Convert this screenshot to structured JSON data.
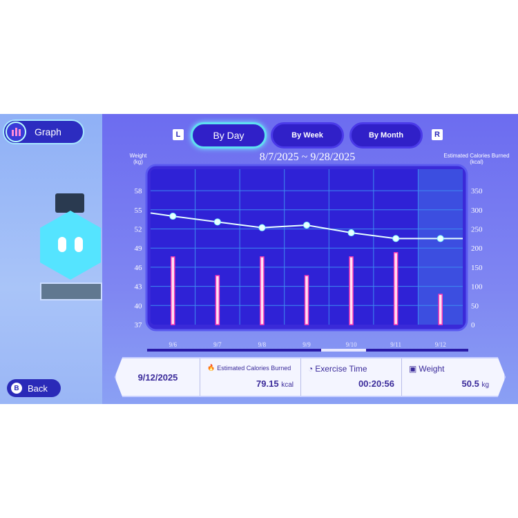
{
  "left_panel": {
    "title": "Graph",
    "back_label": "Back",
    "back_key": "B"
  },
  "tabs": {
    "left_key": "L",
    "right_key": "R",
    "items": [
      {
        "label": "By Day",
        "active": true
      },
      {
        "label": "By Week",
        "active": false
      },
      {
        "label": "By Month",
        "active": false
      }
    ]
  },
  "date_range": "8/7/2025 ~ 9/28/2025",
  "colors": {
    "background": "#6c6cf0",
    "plot": "#2f22d6",
    "weight_line": "#e6ffff",
    "calorie_bar": "#ff3cb4",
    "selected_column": "#3c4ee0"
  },
  "chart_data": {
    "type": "bar+line",
    "categories": [
      "9/6",
      "9/7",
      "9/8",
      "9/9",
      "9/10",
      "9/11",
      "9/12"
    ],
    "selected": "9/12",
    "left_axis": {
      "label_line1": "Weight",
      "label_line2": "(kg)",
      "ticks": [
        37,
        40,
        43,
        46,
        49,
        52,
        55,
        58
      ],
      "range": [
        37,
        60
      ]
    },
    "right_axis": {
      "label_line1": "Estimated Calories Burned",
      "label_line2": "(kcal)",
      "ticks": [
        0,
        50,
        100,
        150,
        200,
        250,
        300,
        350
      ],
      "range": [
        0,
        400
      ]
    },
    "series": [
      {
        "type": "line",
        "axis": "left",
        "values": [
          54.0,
          53.1,
          52.2,
          52.6,
          51.4,
          50.5,
          50.5
        ]
      },
      {
        "type": "bar",
        "axis": "right",
        "values": [
          177,
          128,
          177,
          128,
          177,
          188,
          79.15
        ]
      }
    ],
    "weight_left_edge": 54.5
  },
  "details": {
    "date": "9/12/2025",
    "calories_label": "Estimated Calories Burned",
    "calories_value": "79.15",
    "calories_unit": "kcal",
    "time_label": "Exercise Time",
    "time_value": "00:20:56",
    "weight_label": "Weight",
    "weight_value": "50.5",
    "weight_unit": "kg"
  }
}
